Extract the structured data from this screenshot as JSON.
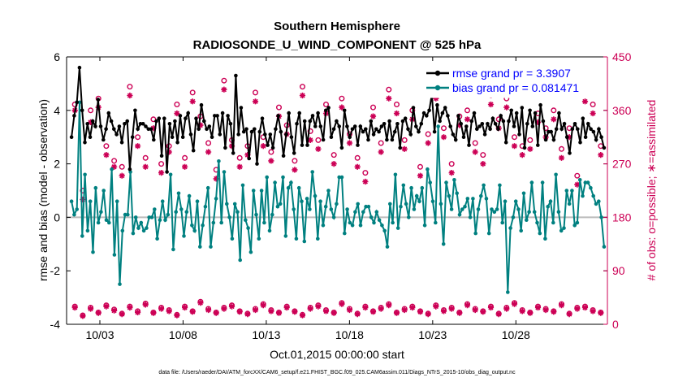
{
  "chart_data": {
    "type": "line",
    "title": "Southern Hemisphere",
    "subtitle": "RADIOSONDE_U_WIND_COMPONENT @ 525 hPa",
    "xlabel": "Oct.01,2015 00:00:00 start",
    "ylabel": "rmse and bias (model - observation)",
    "y2label": "# of obs: o=possible; ∗=assimilated",
    "footnote": "data file: /Users/raeder/DAI/ATM_forcXX/CAM6_setup/f.e21.FHIST_BGC.f09_025.CAM6assim.011/Diags_NTrS_2015-10/obs_diag_output.nc",
    "xlim": [
      1,
      33.5
    ],
    "ylim": [
      -4,
      6
    ],
    "y2lim": [
      0,
      450
    ],
    "x_ticks": [
      3,
      8,
      13,
      18,
      23,
      28
    ],
    "x_tick_labels": [
      "10/03",
      "10/08",
      "10/13",
      "10/18",
      "10/23",
      "10/28"
    ],
    "y_ticks": [
      -4,
      -2,
      0,
      2,
      4,
      6
    ],
    "y_tick_labels": [
      "-4",
      "-2",
      "0",
      "2",
      "4",
      "6"
    ],
    "y2_ticks": [
      0,
      90,
      180,
      270,
      360,
      450
    ],
    "y2_tick_labels": [
      "0",
      "90",
      "180",
      "270",
      "360",
      "450"
    ],
    "colors": {
      "rmse": "#000000",
      "bias": "#008080",
      "obs": "#cc0055",
      "zero_line": "#bbbbbb"
    },
    "legend_position": "top-right",
    "series": [
      {
        "name": "rmse grand pr = 3.3907",
        "axis": "left",
        "values": [
          3.0,
          3.8,
          4.3,
          5.6,
          4.0,
          2.8,
          3.5,
          3.0,
          3.6,
          3.4,
          4.4,
          3.4,
          2.9,
          3.3,
          3.9,
          3.6,
          3.3,
          3.1,
          3.4,
          2.8,
          3.5,
          3.6,
          1.8,
          3.0,
          4.0,
          3.3,
          3.5,
          3.5,
          3.4,
          3.3,
          3.3,
          2.9,
          3.6,
          3.7,
          2.3,
          3.7,
          1.7,
          3.5,
          3.0,
          3.6,
          2.8,
          3.8,
          3.0,
          3.7,
          3.9,
          3.1,
          2.5,
          3.7,
          3.3,
          4.2,
          3.6,
          3.3,
          3.4,
          3.0,
          3.8,
          3.8,
          3.1,
          3.9,
          2.6,
          3.8,
          3.5,
          2.4,
          5.3,
          3.1,
          4.1,
          3.2,
          3.3,
          2.2,
          3.2,
          3.3,
          2.0,
          3.2,
          3.7,
          3.1,
          2.7,
          3.1,
          2.6,
          3.3,
          3.8,
          3.2,
          2.3,
          3.1,
          3.9,
          3.0,
          2.4,
          3.5,
          3.9,
          2.7,
          3.6,
          2.7,
          3.6,
          3.8,
          3.4,
          3.9,
          3.4,
          2.9,
          4.0,
          4.1,
          3.0,
          3.3,
          3.6,
          3.4,
          2.6,
          4.0,
          3.4,
          3.0,
          3.3,
          3.4,
          2.7,
          3.4,
          3.2,
          3.3,
          2.9,
          3.6,
          3.1,
          3.3,
          3.2,
          3.4,
          3.5,
          2.9,
          3.6,
          2.9,
          3.2,
          3.5,
          2.6,
          3.6,
          3.7,
          3.3,
          3.1,
          4.1,
          3.4,
          3.2,
          3.5,
          3.9,
          3.8,
          4.0,
          4.6,
          3.2,
          4.2,
          3.6,
          3.9,
          4.1,
          3.8,
          3.4,
          3.1,
          2.9,
          3.8,
          3.5,
          3.0,
          3.4,
          2.7,
          3.6,
          3.9,
          3.3,
          3.4,
          3.5,
          3.1,
          3.5,
          3.3,
          3.7,
          3.5,
          3.3,
          3.8,
          3.6,
          2.8,
          3.6,
          4.0,
          3.4,
          3.9,
          3.1,
          4.1,
          2.6,
          3.5,
          4.0,
          3.4,
          3.9,
          2.7,
          4.2,
          3.6,
          2.9,
          3.2,
          3.2,
          2.9,
          3.3,
          3.9,
          3.3,
          3.5,
          3.0,
          2.4,
          3.3,
          3.5,
          3.3,
          2.8,
          3.7,
          3.0,
          3.5,
          3.3,
          3.2,
          2.9,
          3.3,
          3.0,
          2.6
        ]
      },
      {
        "name": "bias grand pr = 0.081471",
        "axis": "left",
        "values": [
          0.6,
          0.1,
          0.3,
          4.3,
          -0.7,
          1.6,
          -0.5,
          0.6,
          -1.3,
          1.1,
          -0.2,
          0.2,
          1.0,
          -0.1,
          -0.2,
          1.8,
          -1.4,
          0.6,
          -2.5,
          -0.5,
          0.1,
          0.1,
          1.7,
          -0.6,
          0.0,
          -0.4,
          -0.2,
          -0.5,
          -0.4,
          0.0,
          0.0,
          0.3,
          -0.8,
          -0.1,
          0.6,
          -0.1,
          0.1,
          1.6,
          -1.2,
          0.2,
          0.9,
          0.3,
          -0.7,
          0.2,
          0.8,
          -0.3,
          -0.5,
          0.6,
          -1.1,
          -0.3,
          0.4,
          1.1,
          -1.1,
          -0.2,
          0.7,
          2.1,
          -0.2,
          1.7,
          0.5,
          0.0,
          -0.8,
          0.5,
          0.2,
          -1.6,
          1.2,
          -0.1,
          -0.4,
          -1.3,
          1.0,
          0.1,
          -0.8,
          1.0,
          -0.2,
          1.5,
          -0.5,
          0.1,
          1.3,
          0.4,
          0.5,
          1.5,
          -0.7,
          1.1,
          1.3,
          0.3,
          -0.8,
          1.1,
          0.6,
          -0.9,
          0.7,
          0.3,
          1.7,
          0.8,
          -0.8,
          0.6,
          -0.3,
          0.4,
          1.0,
          0.3,
          0.0,
          0.5,
          1.5,
          1.5,
          -0.6,
          0.3,
          -0.2,
          -0.3,
          0.2,
          0.5,
          -0.3,
          0.2,
          0.4,
          0.4,
          0.0,
          -0.2,
          0.2,
          -0.1,
          -0.3,
          -0.5,
          -1.1,
          0.5,
          -0.2,
          1.6,
          -0.4,
          0.4,
          1.2,
          0.5,
          0.0,
          1.1,
          0.3,
          0.8,
          0.6,
          1.1,
          -0.3,
          1.8,
          1.3,
          0.6,
          -0.2,
          3.4,
          0.5,
          -1.0,
          1.3,
          0.8,
          0.3,
          1.4,
          0.9,
          0.1,
          0.3,
          0.4,
          0.7,
          0.0,
          0.7,
          -0.6,
          0.3,
          0.8,
          1.2,
          0.7,
          -0.6,
          0.3,
          0.2,
          0.3,
          1.2,
          -0.2,
          0.6,
          -2.8,
          -0.4,
          0.0,
          0.6,
          0.3,
          -0.5,
          0.9,
          -0.1,
          0.2,
          1.3,
          0.2,
          -0.2,
          -0.6,
          1.3,
          -0.8,
          0.4,
          0.6,
          -0.2,
          1.6,
          0.2,
          -0.5,
          -0.4,
          1.0,
          0.5,
          1.0,
          -0.3,
          -0.2,
          1.4,
          0.8,
          1.3,
          1.3,
          1.1,
          0.8,
          0.5,
          0.6,
          0.0,
          -1.1
        ]
      }
    ],
    "obs_possible": [
      370,
      225,
      360,
      380,
      300,
      275,
      265,
      400,
      315,
      280,
      345,
      270,
      300,
      370,
      280,
      390,
      350,
      305,
      260,
      410,
      310,
      280,
      300,
      390,
      315,
      290,
      365,
      335,
      275,
      400,
      325,
      310,
      370,
      285,
      380,
      320,
      280,
      255,
      365,
      305,
      395,
      370,
      310,
      360,
      265,
      320,
      395,
      330,
      270,
      350,
      360,
      305,
      285,
      385,
      345,
      380,
      315,
      300,
      310,
      355,
      330,
      360,
      295,
      330,
      250,
      390,
      370,
      300
    ],
    "obs_assimilated": [
      360,
      210,
      340,
      365,
      285,
      265,
      250,
      385,
      300,
      265,
      330,
      255,
      290,
      355,
      265,
      375,
      335,
      290,
      245,
      395,
      300,
      265,
      285,
      375,
      300,
      275,
      350,
      320,
      260,
      385,
      310,
      295,
      355,
      270,
      365,
      305,
      265,
      240,
      350,
      290,
      380,
      355,
      295,
      345,
      250,
      305,
      380,
      315,
      255,
      335,
      345,
      290,
      270,
      370,
      330,
      365,
      300,
      285,
      295,
      340,
      315,
      345,
      280,
      315,
      235,
      375,
      355,
      285
    ],
    "obs_low_possible": [
      30,
      15,
      28,
      20,
      32,
      25,
      18,
      30,
      22,
      35,
      20,
      28,
      24,
      16,
      30,
      22,
      38,
      26,
      20,
      28,
      32,
      22,
      18,
      26,
      34,
      24,
      20,
      30,
      22,
      16,
      28,
      32,
      24,
      20,
      36,
      26,
      18,
      30,
      22,
      28,
      34,
      20,
      26,
      30,
      22,
      18,
      32,
      24,
      28,
      20,
      34,
      26,
      22,
      30,
      18,
      28,
      36,
      24,
      20,
      30,
      26,
      22,
      34,
      18,
      28,
      30,
      24,
      20
    ],
    "obs_low_assimilated": [
      28,
      14,
      26,
      19,
      30,
      23,
      17,
      28,
      20,
      33,
      19,
      26,
      22,
      15,
      28,
      21,
      36,
      24,
      19,
      26,
      30,
      21,
      17,
      24,
      32,
      22,
      19,
      28,
      21,
      15,
      26,
      30,
      22,
      19,
      34,
      24,
      17,
      28,
      21,
      26,
      32,
      19,
      24,
      28,
      21,
      17,
      30,
      22,
      26,
      19,
      32,
      24,
      21,
      28,
      17,
      26,
      34,
      22,
      19,
      28,
      24,
      21,
      32,
      17,
      26,
      28,
      22,
      19
    ]
  }
}
